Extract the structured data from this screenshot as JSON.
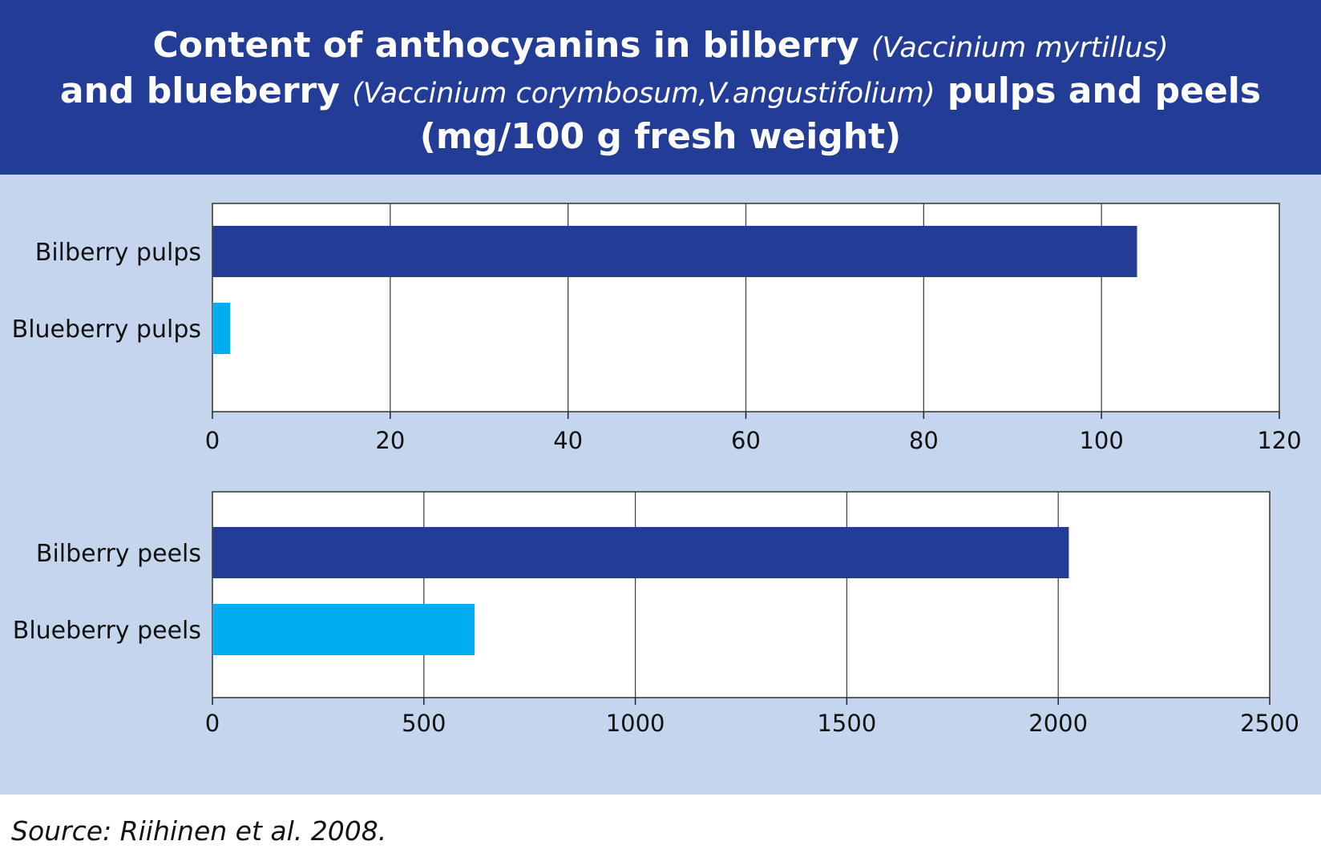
{
  "title": {
    "line1_bold": "Content of anthocyanins in bilberry",
    "line1_italic": "(Vaccinium myrtillus)",
    "line2_bold_a": "and blueberry",
    "line2_italic": "(Vaccinium corymbosum,V.angustifolium)",
    "line2_bold_b": "pulps and peels",
    "line3_bold": "(mg/100 g fresh weight)"
  },
  "colors": {
    "header_bg": "#233d96",
    "panel_bg": "#c6d5ee",
    "bilberry": "#233d96",
    "blueberry": "#00aeef"
  },
  "chart_data": [
    {
      "type": "bar",
      "orientation": "horizontal",
      "categories": [
        "Bilberry pulps",
        "Blueberry pulps"
      ],
      "values": [
        104,
        2
      ],
      "xlim": [
        0,
        120
      ],
      "xticks": [
        "0",
        "20",
        "40",
        "60",
        "80",
        "100",
        "120"
      ],
      "grid": true
    },
    {
      "type": "bar",
      "orientation": "horizontal",
      "categories": [
        "Bilberry peels",
        "Blueberry peels"
      ],
      "values": [
        2025,
        620
      ],
      "xlim": [
        0,
        2500
      ],
      "xticks": [
        "0",
        "500",
        "1000",
        "1500",
        "2000",
        "2500"
      ],
      "grid": true
    }
  ],
  "source": "Source: Riihinen et al. 2008."
}
